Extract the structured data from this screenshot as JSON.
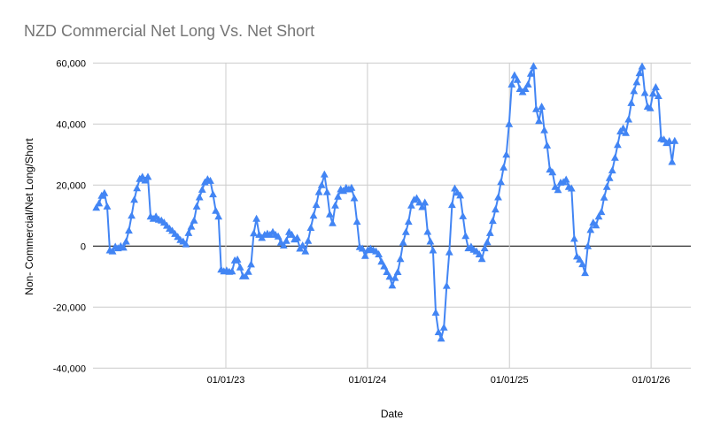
{
  "chart_data": {
    "type": "line",
    "title": "NZD Commercial Net Long Vs. Net Short",
    "xlabel": "Date",
    "ylabel": "Non- Commercial/Net Long/Short",
    "legend": "none",
    "marker": "triangle-up",
    "grid": true,
    "ylim": [
      -40000,
      60000
    ],
    "x_range": [
      "2022-02-01",
      "2026-03-03"
    ],
    "colors": {
      "series": "#4285f4",
      "grid": "#cccccc",
      "zero_line": "#000000",
      "title": "#757575",
      "tick_label": "#000000"
    },
    "y_ticks": [
      {
        "v": 60000,
        "label": "60,000"
      },
      {
        "v": 40000,
        "label": "40,000"
      },
      {
        "v": 20000,
        "label": "20,000"
      },
      {
        "v": 0,
        "label": "0"
      },
      {
        "v": -20000,
        "label": "-20,000"
      },
      {
        "v": -40000,
        "label": "-40,000"
      }
    ],
    "x_ticks": [
      {
        "date": "2023-01-01",
        "label": "01/01/23"
      },
      {
        "date": "2024-01-01",
        "label": "01/01/24"
      },
      {
        "date": "2025-01-01",
        "label": "01/01/25"
      },
      {
        "date": "2026-01-01",
        "label": "01/01/26"
      }
    ],
    "points": [
      [
        "2022-02-01",
        12600
      ],
      [
        "2022-02-08",
        14000
      ],
      [
        "2022-02-15",
        16500
      ],
      [
        "2022-02-22",
        17400
      ],
      [
        "2022-03-01",
        13000
      ],
      [
        "2022-03-08",
        -1400
      ],
      [
        "2022-03-15",
        -1700
      ],
      [
        "2022-03-22",
        -200
      ],
      [
        "2022-03-29",
        -700
      ],
      [
        "2022-04-05",
        0
      ],
      [
        "2022-04-12",
        -500
      ],
      [
        "2022-04-19",
        1500
      ],
      [
        "2022-04-26",
        5100
      ],
      [
        "2022-05-03",
        10000
      ],
      [
        "2022-05-10",
        15200
      ],
      [
        "2022-05-17",
        19000
      ],
      [
        "2022-05-24",
        22000
      ],
      [
        "2022-05-31",
        22700
      ],
      [
        "2022-06-07",
        21500
      ],
      [
        "2022-06-14",
        22700
      ],
      [
        "2022-06-21",
        9700
      ],
      [
        "2022-06-28",
        9000
      ],
      [
        "2022-07-05",
        9700
      ],
      [
        "2022-07-12",
        8700
      ],
      [
        "2022-07-19",
        8400
      ],
      [
        "2022-07-26",
        7700
      ],
      [
        "2022-08-02",
        6700
      ],
      [
        "2022-08-09",
        5700
      ],
      [
        "2022-08-16",
        5000
      ],
      [
        "2022-08-23",
        4000
      ],
      [
        "2022-08-30",
        3000
      ],
      [
        "2022-09-06",
        2000
      ],
      [
        "2022-09-13",
        1500
      ],
      [
        "2022-09-20",
        600
      ],
      [
        "2022-09-27",
        4300
      ],
      [
        "2022-10-04",
        6400
      ],
      [
        "2022-10-11",
        8400
      ],
      [
        "2022-10-18",
        13000
      ],
      [
        "2022-10-25",
        16000
      ],
      [
        "2022-11-01",
        18500
      ],
      [
        "2022-11-08",
        20900
      ],
      [
        "2022-11-15",
        21900
      ],
      [
        "2022-11-22",
        21400
      ],
      [
        "2022-11-29",
        17000
      ],
      [
        "2022-12-06",
        11600
      ],
      [
        "2022-12-13",
        9700
      ],
      [
        "2022-12-20",
        -7700
      ],
      [
        "2022-12-27",
        -8300
      ],
      [
        "2023-01-03",
        -8000
      ],
      [
        "2023-01-10",
        -8400
      ],
      [
        "2023-01-17",
        -8300
      ],
      [
        "2023-01-24",
        -4700
      ],
      [
        "2023-01-31",
        -4400
      ],
      [
        "2023-02-07",
        -7000
      ],
      [
        "2023-02-14",
        -9900
      ],
      [
        "2023-02-21",
        -9900
      ],
      [
        "2023-02-28",
        -8400
      ],
      [
        "2023-03-07",
        -6000
      ],
      [
        "2023-03-14",
        4200
      ],
      [
        "2023-03-21",
        9000
      ],
      [
        "2023-03-28",
        3700
      ],
      [
        "2023-04-04",
        2700
      ],
      [
        "2023-04-11",
        3700
      ],
      [
        "2023-04-18",
        4100
      ],
      [
        "2023-04-25",
        3700
      ],
      [
        "2023-05-02",
        4600
      ],
      [
        "2023-05-09",
        3700
      ],
      [
        "2023-05-16",
        3200
      ],
      [
        "2023-05-23",
        1200
      ],
      [
        "2023-05-30",
        200
      ],
      [
        "2023-06-06",
        1700
      ],
      [
        "2023-06-13",
        4600
      ],
      [
        "2023-06-20",
        3700
      ],
      [
        "2023-06-27",
        2200
      ],
      [
        "2023-07-04",
        2700
      ],
      [
        "2023-07-11",
        -800
      ],
      [
        "2023-07-18",
        200
      ],
      [
        "2023-07-25",
        -1700
      ],
      [
        "2023-08-01",
        1700
      ],
      [
        "2023-08-08",
        6000
      ],
      [
        "2023-08-15",
        10000
      ],
      [
        "2023-08-22",
        13500
      ],
      [
        "2023-08-29",
        17700
      ],
      [
        "2023-09-05",
        20000
      ],
      [
        "2023-09-12",
        23500
      ],
      [
        "2023-09-19",
        17700
      ],
      [
        "2023-09-26",
        10400
      ],
      [
        "2023-10-03",
        7500
      ],
      [
        "2023-10-10",
        13300
      ],
      [
        "2023-10-17",
        16200
      ],
      [
        "2023-10-24",
        18600
      ],
      [
        "2023-10-31",
        18100
      ],
      [
        "2023-11-07",
        19100
      ],
      [
        "2023-11-14",
        18600
      ],
      [
        "2023-11-21",
        19100
      ],
      [
        "2023-11-28",
        15700
      ],
      [
        "2023-12-05",
        8000
      ],
      [
        "2023-12-12",
        -300
      ],
      [
        "2023-12-19",
        -800
      ],
      [
        "2023-12-26",
        -3200
      ],
      [
        "2024-01-02",
        -1300
      ],
      [
        "2024-01-09",
        -800
      ],
      [
        "2024-01-16",
        -1300
      ],
      [
        "2024-01-23",
        -1700
      ],
      [
        "2024-01-30",
        -2700
      ],
      [
        "2024-02-06",
        -5100
      ],
      [
        "2024-02-13",
        -6600
      ],
      [
        "2024-02-20",
        -8500
      ],
      [
        "2024-02-27",
        -10000
      ],
      [
        "2024-03-05",
        -12900
      ],
      [
        "2024-03-12",
        -10400
      ],
      [
        "2024-03-19",
        -8500
      ],
      [
        "2024-03-26",
        -4200
      ],
      [
        "2024-04-02",
        1200
      ],
      [
        "2024-04-09",
        4600
      ],
      [
        "2024-04-16",
        8000
      ],
      [
        "2024-04-23",
        13300
      ],
      [
        "2024-04-30",
        15200
      ],
      [
        "2024-05-07",
        15700
      ],
      [
        "2024-05-14",
        14300
      ],
      [
        "2024-05-21",
        12800
      ],
      [
        "2024-05-28",
        14300
      ],
      [
        "2024-06-04",
        4700
      ],
      [
        "2024-06-11",
        1500
      ],
      [
        "2024-06-18",
        -1400
      ],
      [
        "2024-06-25",
        -21800
      ],
      [
        "2024-07-02",
        -28200
      ],
      [
        "2024-07-09",
        -30300
      ],
      [
        "2024-07-16",
        -26700
      ],
      [
        "2024-07-23",
        -13000
      ],
      [
        "2024-07-30",
        -2000
      ],
      [
        "2024-08-06",
        13500
      ],
      [
        "2024-08-13",
        18900
      ],
      [
        "2024-08-20",
        17500
      ],
      [
        "2024-08-27",
        16600
      ],
      [
        "2024-09-03",
        9800
      ],
      [
        "2024-09-10",
        3300
      ],
      [
        "2024-09-17",
        -700
      ],
      [
        "2024-09-24",
        -200
      ],
      [
        "2024-10-01",
        -1200
      ],
      [
        "2024-10-08",
        -1700
      ],
      [
        "2024-10-15",
        -2700
      ],
      [
        "2024-10-22",
        -4200
      ],
      [
        "2024-10-29",
        -700
      ],
      [
        "2024-11-05",
        1300
      ],
      [
        "2024-11-12",
        4300
      ],
      [
        "2024-11-19",
        8300
      ],
      [
        "2024-11-26",
        12000
      ],
      [
        "2024-12-03",
        16000
      ],
      [
        "2024-12-10",
        21000
      ],
      [
        "2024-12-17",
        25800
      ],
      [
        "2024-12-24",
        30000
      ],
      [
        "2024-12-31",
        40000
      ],
      [
        "2025-01-07",
        53000
      ],
      [
        "2025-01-14",
        56000
      ],
      [
        "2025-01-21",
        54500
      ],
      [
        "2025-01-28",
        51500
      ],
      [
        "2025-02-04",
        50500
      ],
      [
        "2025-02-11",
        51500
      ],
      [
        "2025-02-18",
        53000
      ],
      [
        "2025-02-25",
        56500
      ],
      [
        "2025-03-04",
        59000
      ],
      [
        "2025-03-11",
        44900
      ],
      [
        "2025-03-18",
        41000
      ],
      [
        "2025-03-25",
        45700
      ],
      [
        "2025-04-01",
        38000
      ],
      [
        "2025-04-08",
        33000
      ],
      [
        "2025-04-15",
        25100
      ],
      [
        "2025-04-22",
        24200
      ],
      [
        "2025-04-29",
        19400
      ],
      [
        "2025-05-06",
        18400
      ],
      [
        "2025-05-13",
        20800
      ],
      [
        "2025-05-20",
        21000
      ],
      [
        "2025-05-27",
        21800
      ],
      [
        "2025-06-03",
        19400
      ],
      [
        "2025-06-10",
        18900
      ],
      [
        "2025-06-17",
        2400
      ],
      [
        "2025-06-24",
        -3400
      ],
      [
        "2025-07-01",
        -4400
      ],
      [
        "2025-07-08",
        -5900
      ],
      [
        "2025-07-15",
        -8800
      ],
      [
        "2025-07-22",
        0
      ],
      [
        "2025-07-29",
        5300
      ],
      [
        "2025-08-05",
        7700
      ],
      [
        "2025-08-12",
        6800
      ],
      [
        "2025-08-19",
        9700
      ],
      [
        "2025-08-26",
        11200
      ],
      [
        "2025-09-02",
        15900
      ],
      [
        "2025-09-09",
        19400
      ],
      [
        "2025-09-16",
        22300
      ],
      [
        "2025-09-23",
        24800
      ],
      [
        "2025-09-30",
        29000
      ],
      [
        "2025-10-07",
        33200
      ],
      [
        "2025-10-14",
        37600
      ],
      [
        "2025-10-21",
        38600
      ],
      [
        "2025-10-28",
        37100
      ],
      [
        "2025-11-04",
        41500
      ],
      [
        "2025-11-11",
        46900
      ],
      [
        "2025-11-18",
        50800
      ],
      [
        "2025-11-25",
        53700
      ],
      [
        "2025-12-02",
        56700
      ],
      [
        "2025-12-09",
        58900
      ],
      [
        "2025-12-16",
        50200
      ],
      [
        "2025-12-23",
        45700
      ],
      [
        "2025-12-30",
        45200
      ],
      [
        "2026-01-06",
        50000
      ],
      [
        "2026-01-13",
        52100
      ],
      [
        "2026-01-20",
        49200
      ],
      [
        "2026-01-27",
        35200
      ],
      [
        "2026-02-03",
        34900
      ],
      [
        "2026-02-10",
        33800
      ],
      [
        "2026-02-17",
        34400
      ],
      [
        "2026-02-24",
        27600
      ],
      [
        "2026-03-03",
        34500
      ]
    ]
  }
}
